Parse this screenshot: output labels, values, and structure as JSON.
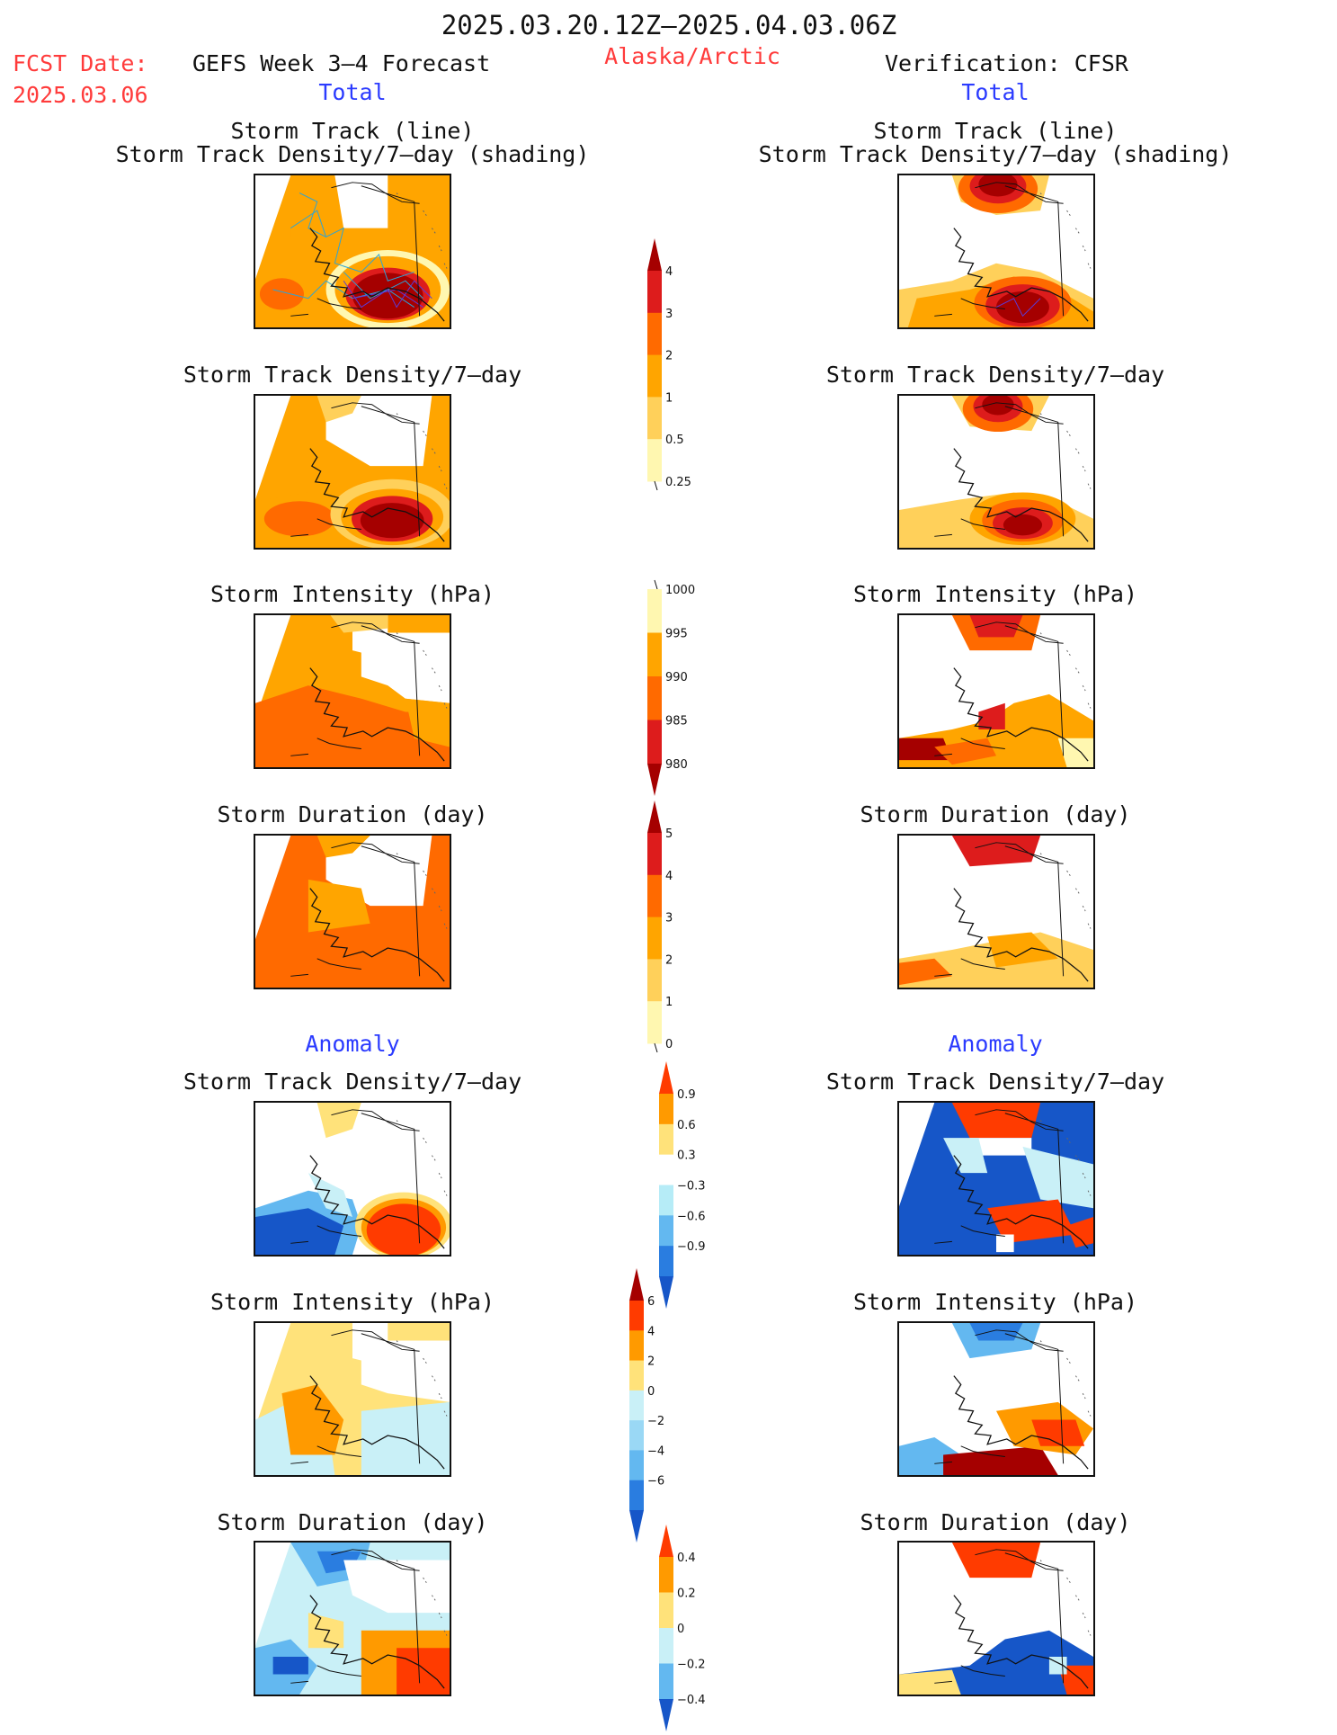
{
  "header": {
    "period": "2025.03.20.12Z–2025.04.03.06Z",
    "fcst_label": "FCST Date:",
    "fcst_date": "2025.03.06",
    "forecast_title": "GEFS Week 3–4 Forecast",
    "region": "Alaska/Arctic",
    "verification": "Verification: CFSR",
    "total_left": "Total",
    "total_right": "Total",
    "anomaly_left": "Anomaly",
    "anomaly_right": "Anomaly"
  },
  "panel_titles": {
    "track_line": "Storm Track (line)",
    "track_shading": "Storm Track Density/7–day (shading)",
    "density": "Storm Track Density/7–day",
    "intensity": "Storm Intensity (hPa)",
    "duration": "Storm Duration (day)"
  },
  "colorbars": {
    "density_total": {
      "labels": [
        "4",
        "3",
        "2",
        "1",
        "0.5",
        "0.25"
      ],
      "colors": [
        "#a50000",
        "#dd1c1c",
        "#ff6a00",
        "#ffa500",
        "#ffd05a",
        "#fff7b0"
      ]
    },
    "intensity_total": {
      "labels": [
        "1000",
        "995",
        "990",
        "985",
        "980"
      ],
      "colors": [
        "#fff7b0",
        "#ffa500",
        "#ff6a00",
        "#dd1c1c",
        "#a50000"
      ]
    },
    "duration_total": {
      "labels": [
        "5",
        "4",
        "3",
        "2",
        "1",
        "0"
      ],
      "colors": [
        "#a50000",
        "#dd1c1c",
        "#ff6a00",
        "#ffa500",
        "#ffd05a",
        "#fff7b0"
      ]
    },
    "density_anom": {
      "labels": [
        "0.9",
        "0.6",
        "0.3",
        "−0.3",
        "−0.6",
        "−0.9"
      ],
      "colors": [
        "#ff3b00",
        "#ff9a00",
        "#ffe27a",
        "#ffffff",
        "#b6ecf7",
        "#63b8f0",
        "#2a7de0",
        "#1656c8"
      ]
    },
    "intensity_anom": {
      "labels": [
        "6",
        "4",
        "2",
        "0",
        "−2",
        "−4",
        "−6"
      ],
      "colors": [
        "#a50000",
        "#ff3b00",
        "#ff9a00",
        "#ffe27a",
        "#c9f0f7",
        "#9ad8f5",
        "#63b8f0",
        "#2a7de0",
        "#1656c8"
      ]
    },
    "duration_anom": {
      "labels": [
        "0.4",
        "0.2",
        "0",
        "−0.2",
        "−0.4"
      ],
      "colors": [
        "#ff3b00",
        "#ff9a00",
        "#ffe27a",
        "#c9f0f7",
        "#63b8f0",
        "#1656c8"
      ]
    }
  }
}
